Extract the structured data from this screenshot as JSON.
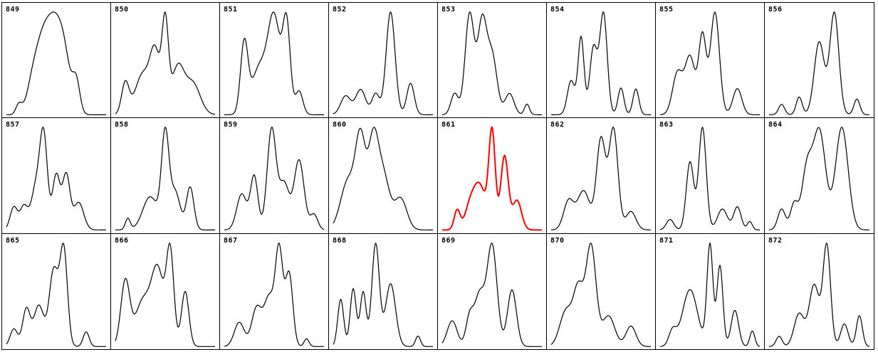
{
  "chart_data": {
    "type": "line",
    "layout": "small-multiples grid, 8 columns x 3 rows",
    "grid": true,
    "line_color": "#000000",
    "highlight_color": "#ff0000",
    "x": [
      0,
      1,
      2,
      3,
      4,
      5,
      6,
      7,
      8,
      9,
      10,
      11,
      12,
      13,
      14,
      15,
      16,
      17,
      18,
      19,
      20,
      21,
      22,
      23,
      24,
      25,
      26,
      27,
      28,
      29,
      30,
      31,
      32,
      33,
      34,
      35,
      36,
      37,
      38,
      39,
      40
    ],
    "ylim": [
      0,
      1
    ],
    "panels": [
      {
        "label": "849",
        "highlight": false,
        "peaks": [
          [
            5,
            0.13,
            1.2
          ],
          [
            11,
            0.5,
            2.5
          ],
          [
            15,
            0.8,
            2.5
          ],
          [
            19,
            0.9,
            2.5
          ],
          [
            23,
            0.8,
            2.5
          ],
          [
            28,
            0.42,
            1.5
          ]
        ]
      },
      {
        "label": "850",
        "highlight": false,
        "peaks": [
          [
            4,
            0.35,
            1.5
          ],
          [
            11,
            0.45,
            3
          ],
          [
            16,
            0.65,
            2
          ],
          [
            20,
            0.98,
            1.3
          ],
          [
            25,
            0.52,
            2.5
          ],
          [
            31,
            0.35,
            3
          ]
        ]
      },
      {
        "label": "851",
        "highlight": false,
        "peaks": [
          [
            8,
            0.68,
            1.5
          ],
          [
            14,
            0.45,
            3
          ],
          [
            20,
            0.93,
            2.5
          ],
          [
            25,
            0.85,
            1.5
          ],
          [
            30,
            0.23,
            1.5
          ]
        ]
      },
      {
        "label": "852",
        "highlight": false,
        "peaks": [
          [
            5,
            0.18,
            2
          ],
          [
            11,
            0.24,
            2
          ],
          [
            17,
            0.2,
            1.5
          ],
          [
            23,
            0.98,
            1.8
          ],
          [
            31,
            0.3,
            1.5
          ]
        ]
      },
      {
        "label": "853",
        "highlight": false,
        "peaks": [
          [
            5,
            0.2,
            1.5
          ],
          [
            11,
            0.95,
            1.8
          ],
          [
            16,
            0.85,
            1.8
          ],
          [
            20,
            0.55,
            2
          ],
          [
            27,
            0.2,
            1.8
          ],
          [
            34,
            0.1,
            1
          ]
        ]
      },
      {
        "label": "854",
        "highlight": false,
        "peaks": [
          [
            8,
            0.33,
            1.5
          ],
          [
            12,
            0.75,
            1.2
          ],
          [
            17,
            0.65,
            1.5
          ],
          [
            21,
            0.98,
            1.5
          ],
          [
            28,
            0.26,
            1.2
          ],
          [
            34,
            0.25,
            1.2
          ]
        ]
      },
      {
        "label": "855",
        "highlight": false,
        "peaks": [
          [
            7,
            0.4,
            2
          ],
          [
            12,
            0.55,
            2
          ],
          [
            17,
            0.75,
            1.5
          ],
          [
            22,
            0.98,
            1.8
          ],
          [
            31,
            0.25,
            1.8
          ]
        ]
      },
      {
        "label": "856",
        "highlight": false,
        "peaks": [
          [
            5,
            0.1,
            1.2
          ],
          [
            12,
            0.17,
            1.2
          ],
          [
            20,
            0.7,
            2
          ],
          [
            26,
            0.98,
            1.8
          ],
          [
            35,
            0.15,
            1.2
          ]
        ]
      },
      {
        "label": "857",
        "highlight": false,
        "peaks": [
          [
            3,
            0.25,
            1.5
          ],
          [
            7,
            0.25,
            1.5
          ],
          [
            12,
            0.48,
            2
          ],
          [
            15,
            0.95,
            1.5
          ],
          [
            20,
            0.6,
            1.5
          ],
          [
            24,
            0.6,
            1.5
          ],
          [
            29,
            0.3,
            2
          ]
        ]
      },
      {
        "label": "858",
        "highlight": false,
        "peaks": [
          [
            5,
            0.12,
            1
          ],
          [
            14,
            0.35,
            3
          ],
          [
            20,
            0.98,
            1.5
          ],
          [
            24,
            0.4,
            2
          ],
          [
            30,
            0.45,
            1.5
          ]
        ]
      },
      {
        "label": "859",
        "highlight": false,
        "peaks": [
          [
            7,
            0.35,
            2
          ],
          [
            12,
            0.52,
            1.5
          ],
          [
            19,
            0.98,
            1.8
          ],
          [
            24,
            0.45,
            2
          ],
          [
            30,
            0.68,
            2
          ],
          [
            36,
            0.15,
            1.5
          ]
        ]
      },
      {
        "label": "860",
        "highlight": false,
        "peaks": [
          [
            6,
            0.55,
            3
          ],
          [
            11,
            0.95,
            2
          ],
          [
            16,
            0.92,
            2
          ],
          [
            20,
            0.6,
            2.5
          ],
          [
            27,
            0.35,
            2.5
          ]
        ]
      },
      {
        "label": "861",
        "highlight": true,
        "peaks": [
          [
            6,
            0.2,
            1.2
          ],
          [
            11,
            0.2,
            2
          ],
          [
            15,
            0.45,
            2.5
          ],
          [
            20,
            0.98,
            1.3
          ],
          [
            25,
            0.75,
            1.5
          ],
          [
            30,
            0.3,
            1.8
          ]
        ]
      },
      {
        "label": "862",
        "highlight": false,
        "peaks": [
          [
            7,
            0.28,
            2
          ],
          [
            13,
            0.38,
            2.5
          ],
          [
            20,
            0.88,
            1.8
          ],
          [
            25,
            0.98,
            1.8
          ],
          [
            32,
            0.18,
            2
          ]
        ]
      },
      {
        "label": "863",
        "highlight": false,
        "peaks": [
          [
            4,
            0.1,
            1.5
          ],
          [
            12,
            0.65,
            1.5
          ],
          [
            17,
            0.98,
            1.5
          ],
          [
            25,
            0.2,
            2
          ],
          [
            31,
            0.22,
            1.5
          ],
          [
            36,
            0.08,
            1
          ]
        ]
      },
      {
        "label": "864",
        "highlight": false,
        "peaks": [
          [
            5,
            0.2,
            1.5
          ],
          [
            10,
            0.25,
            1.5
          ],
          [
            15,
            0.55,
            2
          ],
          [
            20,
            0.95,
            2.5
          ],
          [
            29,
            0.98,
            2.5
          ]
        ]
      },
      {
        "label": "865",
        "highlight": false,
        "peaks": [
          [
            3,
            0.18,
            1.5
          ],
          [
            8,
            0.38,
            1.5
          ],
          [
            13,
            0.42,
            2
          ],
          [
            19,
            0.78,
            1.8
          ],
          [
            23,
            0.98,
            1.5
          ],
          [
            32,
            0.15,
            1.2
          ]
        ]
      },
      {
        "label": "866",
        "highlight": false,
        "peaks": [
          [
            4,
            0.65,
            1.8
          ],
          [
            11,
            0.45,
            3
          ],
          [
            17,
            0.75,
            2.5
          ],
          [
            22,
            0.92,
            1.5
          ],
          [
            28,
            0.55,
            1.5
          ]
        ]
      },
      {
        "label": "867",
        "highlight": false,
        "peaks": [
          [
            6,
            0.25,
            2
          ],
          [
            13,
            0.4,
            2
          ],
          [
            18,
            0.5,
            2
          ],
          [
            22,
            0.98,
            1.5
          ],
          [
            26,
            0.75,
            1.5
          ],
          [
            33,
            0.08,
            1
          ]
        ]
      },
      {
        "label": "868",
        "highlight": false,
        "peaks": [
          [
            3,
            0.45,
            1.2
          ],
          [
            8,
            0.55,
            1.2
          ],
          [
            12,
            0.52,
            1.2
          ],
          [
            17,
            0.98,
            1.5
          ],
          [
            23,
            0.6,
            2
          ],
          [
            34,
            0.1,
            1
          ]
        ]
      },
      {
        "label": "869",
        "highlight": false,
        "peaks": [
          [
            4,
            0.25,
            2
          ],
          [
            11,
            0.28,
            1.5
          ],
          [
            15,
            0.5,
            2
          ],
          [
            20,
            0.98,
            2
          ],
          [
            28,
            0.55,
            1.8
          ]
        ]
      },
      {
        "label": "870",
        "highlight": false,
        "peaks": [
          [
            6,
            0.35,
            2.5
          ],
          [
            11,
            0.55,
            2
          ],
          [
            16,
            0.98,
            2
          ],
          [
            23,
            0.3,
            2.5
          ],
          [
            32,
            0.2,
            2
          ]
        ]
      },
      {
        "label": "871",
        "highlight": false,
        "peaks": [
          [
            5,
            0.15,
            1.5
          ],
          [
            12,
            0.55,
            3
          ],
          [
            20,
            0.98,
            1.2
          ],
          [
            24,
            0.78,
            1.2
          ],
          [
            30,
            0.35,
            1.5
          ],
          [
            37,
            0.15,
            1
          ]
        ]
      },
      {
        "label": "872",
        "highlight": false,
        "peaks": [
          [
            4,
            0.1,
            1.2
          ],
          [
            12,
            0.32,
            2
          ],
          [
            18,
            0.6,
            2
          ],
          [
            23,
            0.98,
            1.5
          ],
          [
            30,
            0.22,
            1.5
          ],
          [
            36,
            0.3,
            1.2
          ]
        ]
      }
    ]
  }
}
